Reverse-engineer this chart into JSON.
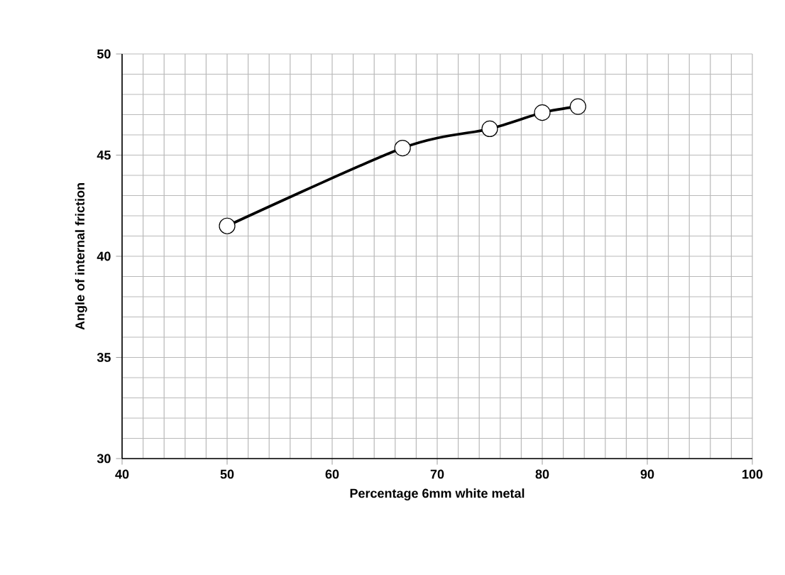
{
  "chart_data": {
    "type": "line",
    "xlabel": "Percentage 6mm white metal",
    "ylabel": "Angle of internal friction",
    "x": [
      50,
      66.7,
      75,
      80,
      83.4
    ],
    "series": [
      {
        "color": "#000000",
        "values": [
          41.5,
          45.35,
          46.3,
          47.1,
          47.4
        ]
      }
    ],
    "xlim": [
      40,
      100
    ],
    "ylim": [
      30,
      50
    ],
    "xticks": [
      40,
      50,
      60,
      70,
      80,
      90,
      100
    ],
    "yticks": [
      30,
      35,
      40,
      45,
      50
    ],
    "grid": true,
    "marker": "circle",
    "line_style": "solid"
  }
}
